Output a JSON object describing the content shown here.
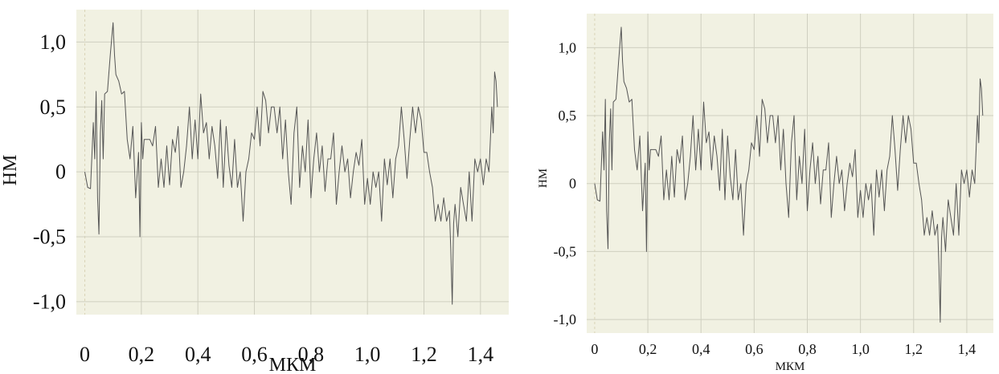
{
  "chart_data": [
    {
      "type": "line",
      "xlabel": "МКМ",
      "ylabel": "НМ",
      "xlim": [
        -0.03,
        1.5
      ],
      "ylim": [
        -1.1,
        1.25
      ],
      "xticks": [
        {
          "value": 0,
          "label": "0"
        },
        {
          "value": 0.2,
          "label": "0,2"
        },
        {
          "value": 0.4,
          "label": "0,4"
        },
        {
          "value": 0.6,
          "label": "0,6"
        },
        {
          "value": 0.8,
          "label": "0,8"
        },
        {
          "value": 1.0,
          "label": "1,0"
        },
        {
          "value": 1.2,
          "label": "1,2"
        },
        {
          "value": 1.4,
          "label": "1,4"
        }
      ],
      "yticks": [
        {
          "value": 1.0,
          "label": "1,0"
        },
        {
          "value": 0.5,
          "label": "0,5"
        },
        {
          "value": 0,
          "label": "0"
        },
        {
          "value": -0.5,
          "label": "-0,5"
        },
        {
          "value": -1.0,
          "label": "-1,0"
        }
      ],
      "grid": true,
      "colors": {
        "background": "#f1f1e2",
        "grid": "#cfcfc0",
        "line": "#555555"
      },
      "series": [
        {
          "x": [
            0,
            0.01,
            0.02,
            0.03,
            0.035,
            0.04,
            0.045,
            0.05,
            0.055,
            0.06,
            0.065,
            0.07,
            0.08,
            0.09,
            0.1,
            0.105,
            0.11,
            0.12,
            0.13,
            0.14,
            0.15,
            0.16,
            0.17,
            0.18,
            0.19,
            0.195,
            0.2,
            0.205,
            0.21,
            0.22,
            0.23,
            0.24,
            0.25,
            0.26,
            0.27,
            0.28,
            0.29,
            0.3,
            0.31,
            0.32,
            0.33,
            0.34,
            0.35,
            0.36,
            0.37,
            0.38,
            0.39,
            0.4,
            0.41,
            0.42,
            0.43,
            0.44,
            0.45,
            0.46,
            0.47,
            0.48,
            0.49,
            0.5,
            0.51,
            0.52,
            0.53,
            0.54,
            0.55,
            0.56,
            0.57,
            0.58,
            0.59,
            0.6,
            0.61,
            0.62,
            0.63,
            0.64,
            0.65,
            0.66,
            0.67,
            0.68,
            0.69,
            0.7,
            0.71,
            0.72,
            0.73,
            0.74,
            0.75,
            0.76,
            0.77,
            0.78,
            0.79,
            0.8,
            0.81,
            0.82,
            0.83,
            0.84,
            0.85,
            0.86,
            0.87,
            0.88,
            0.89,
            0.9,
            0.91,
            0.92,
            0.93,
            0.94,
            0.95,
            0.96,
            0.97,
            0.98,
            0.99,
            1.0,
            1.01,
            1.02,
            1.03,
            1.04,
            1.05,
            1.06,
            1.07,
            1.08,
            1.09,
            1.1,
            1.11,
            1.12,
            1.13,
            1.14,
            1.15,
            1.16,
            1.17,
            1.18,
            1.19,
            1.2,
            1.21,
            1.22,
            1.23,
            1.24,
            1.25,
            1.26,
            1.27,
            1.28,
            1.29,
            1.295,
            1.3,
            1.305,
            1.31,
            1.32,
            1.33,
            1.34,
            1.35,
            1.36,
            1.37,
            1.38,
            1.39,
            1.4,
            1.41,
            1.42,
            1.43,
            1.44,
            1.445,
            1.45,
            1.455,
            1.46
          ],
          "y": [
            0,
            -0.12,
            -0.13,
            0.38,
            0.1,
            0.62,
            -0.2,
            -0.48,
            0.3,
            0.55,
            0.1,
            0.6,
            0.62,
            0.9,
            1.15,
            0.9,
            0.75,
            0.7,
            0.6,
            0.62,
            0.25,
            0.1,
            0.35,
            -0.2,
            0.15,
            -0.5,
            0.38,
            0.1,
            0.25,
            0.25,
            0.25,
            0.2,
            0.35,
            -0.12,
            0.1,
            -0.12,
            0.2,
            -0.1,
            0.25,
            0.15,
            0.35,
            -0.12,
            0.0,
            0.2,
            0.5,
            0.1,
            0.4,
            0.1,
            0.6,
            0.3,
            0.38,
            0.1,
            0.35,
            0.2,
            -0.05,
            0.4,
            -0.12,
            0.35,
            0.05,
            -0.12,
            0.25,
            -0.12,
            0.0,
            -0.38,
            0.0,
            0.1,
            0.3,
            0.25,
            0.5,
            0.2,
            0.62,
            0.55,
            0.3,
            0.5,
            0.5,
            0.3,
            0.5,
            0.1,
            0.4,
            0.0,
            -0.25,
            0.3,
            0.5,
            -0.12,
            0.2,
            0.0,
            0.4,
            -0.2,
            0.1,
            0.3,
            0.0,
            0.2,
            -0.15,
            0.1,
            0.1,
            0.3,
            -0.25,
            0.0,
            0.2,
            0.0,
            0.1,
            -0.2,
            0.0,
            0.15,
            0.05,
            0.25,
            -0.25,
            -0.05,
            -0.25,
            0.0,
            -0.12,
            0.0,
            -0.38,
            0.1,
            -0.1,
            0.1,
            -0.2,
            0.1,
            0.2,
            0.5,
            0.25,
            -0.05,
            0.25,
            0.5,
            0.3,
            0.5,
            0.4,
            0.15,
            0.15,
            0.0,
            -0.12,
            -0.38,
            -0.25,
            -0.38,
            -0.2,
            -0.38,
            -0.3,
            -0.6,
            -1.02,
            -0.4,
            -0.25,
            -0.5,
            -0.12,
            -0.25,
            -0.38,
            0.0,
            -0.38,
            0.1,
            0.0,
            0.1,
            -0.1,
            0.1,
            0.0,
            0.5,
            0.3,
            0.77,
            0.7,
            0.5
          ]
        }
      ]
    },
    {
      "type": "line",
      "xlabel": "МКМ",
      "ylabel": "НМ",
      "xlim": [
        -0.03,
        1.5
      ],
      "ylim": [
        -1.1,
        1.25
      ],
      "xticks": [
        {
          "value": 0,
          "label": "0"
        },
        {
          "value": 0.2,
          "label": "0,2"
        },
        {
          "value": 0.4,
          "label": "0,4"
        },
        {
          "value": 0.6,
          "label": "0,6"
        },
        {
          "value": 0.8,
          "label": "0,8"
        },
        {
          "value": 1.0,
          "label": "1,0"
        },
        {
          "value": 1.2,
          "label": "1,2"
        },
        {
          "value": 1.4,
          "label": "1,4"
        }
      ],
      "yticks": [
        {
          "value": 1.0,
          "label": "1,0"
        },
        {
          "value": 0.5,
          "label": "0,5"
        },
        {
          "value": 0,
          "label": "0"
        },
        {
          "value": -0.5,
          "label": "-0,5"
        },
        {
          "value": -1.0,
          "label": "-1,0"
        }
      ],
      "grid": true,
      "colors": {
        "background": "#f1f1e2",
        "grid": "#cfcfc0",
        "line": "#555555"
      },
      "series": [
        {
          "x": [
            0,
            0.01,
            0.02,
            0.03,
            0.035,
            0.04,
            0.045,
            0.05,
            0.055,
            0.06,
            0.065,
            0.07,
            0.08,
            0.09,
            0.1,
            0.105,
            0.11,
            0.12,
            0.13,
            0.14,
            0.15,
            0.16,
            0.17,
            0.18,
            0.19,
            0.195,
            0.2,
            0.205,
            0.21,
            0.22,
            0.23,
            0.24,
            0.25,
            0.26,
            0.27,
            0.28,
            0.29,
            0.3,
            0.31,
            0.32,
            0.33,
            0.34,
            0.35,
            0.36,
            0.37,
            0.38,
            0.39,
            0.4,
            0.41,
            0.42,
            0.43,
            0.44,
            0.45,
            0.46,
            0.47,
            0.48,
            0.49,
            0.5,
            0.51,
            0.52,
            0.53,
            0.54,
            0.55,
            0.56,
            0.57,
            0.58,
            0.59,
            0.6,
            0.61,
            0.62,
            0.63,
            0.64,
            0.65,
            0.66,
            0.67,
            0.68,
            0.69,
            0.7,
            0.71,
            0.72,
            0.73,
            0.74,
            0.75,
            0.76,
            0.77,
            0.78,
            0.79,
            0.8,
            0.81,
            0.82,
            0.83,
            0.84,
            0.85,
            0.86,
            0.87,
            0.88,
            0.89,
            0.9,
            0.91,
            0.92,
            0.93,
            0.94,
            0.95,
            0.96,
            0.97,
            0.98,
            0.99,
            1.0,
            1.01,
            1.02,
            1.03,
            1.04,
            1.05,
            1.06,
            1.07,
            1.08,
            1.09,
            1.1,
            1.11,
            1.12,
            1.13,
            1.14,
            1.15,
            1.16,
            1.17,
            1.18,
            1.19,
            1.2,
            1.21,
            1.22,
            1.23,
            1.24,
            1.25,
            1.26,
            1.27,
            1.28,
            1.29,
            1.295,
            1.3,
            1.305,
            1.31,
            1.32,
            1.33,
            1.34,
            1.35,
            1.36,
            1.37,
            1.38,
            1.39,
            1.4,
            1.41,
            1.42,
            1.43,
            1.44,
            1.445,
            1.45,
            1.455,
            1.46
          ],
          "y": [
            0,
            -0.12,
            -0.13,
            0.38,
            0.1,
            0.62,
            -0.2,
            -0.48,
            0.3,
            0.55,
            0.1,
            0.6,
            0.62,
            0.9,
            1.15,
            0.9,
            0.75,
            0.7,
            0.6,
            0.62,
            0.25,
            0.1,
            0.35,
            -0.2,
            0.15,
            -0.5,
            0.38,
            0.1,
            0.25,
            0.25,
            0.25,
            0.2,
            0.35,
            -0.12,
            0.1,
            -0.12,
            0.2,
            -0.1,
            0.25,
            0.15,
            0.35,
            -0.12,
            0.0,
            0.2,
            0.5,
            0.1,
            0.4,
            0.1,
            0.6,
            0.3,
            0.38,
            0.1,
            0.35,
            0.2,
            -0.05,
            0.4,
            -0.12,
            0.35,
            0.05,
            -0.12,
            0.25,
            -0.12,
            0.0,
            -0.38,
            0.0,
            0.1,
            0.3,
            0.25,
            0.5,
            0.2,
            0.62,
            0.55,
            0.3,
            0.5,
            0.5,
            0.3,
            0.5,
            0.1,
            0.4,
            0.0,
            -0.25,
            0.3,
            0.5,
            -0.12,
            0.2,
            0.0,
            0.4,
            -0.2,
            0.1,
            0.3,
            0.0,
            0.2,
            -0.15,
            0.1,
            0.1,
            0.3,
            -0.25,
            0.0,
            0.2,
            0.0,
            0.1,
            -0.2,
            0.0,
            0.15,
            0.05,
            0.25,
            -0.25,
            -0.05,
            -0.25,
            0.0,
            -0.12,
            0.0,
            -0.38,
            0.1,
            -0.1,
            0.1,
            -0.2,
            0.1,
            0.2,
            0.5,
            0.25,
            -0.05,
            0.25,
            0.5,
            0.3,
            0.5,
            0.4,
            0.15,
            0.15,
            0.0,
            -0.12,
            -0.38,
            -0.25,
            -0.38,
            -0.2,
            -0.38,
            -0.3,
            -0.6,
            -1.02,
            -0.4,
            -0.25,
            -0.5,
            -0.12,
            -0.25,
            -0.38,
            0.0,
            -0.38,
            0.1,
            0.0,
            0.1,
            -0.1,
            0.1,
            0.0,
            0.5,
            0.3,
            0.77,
            0.7,
            0.5
          ]
        }
      ]
    }
  ]
}
